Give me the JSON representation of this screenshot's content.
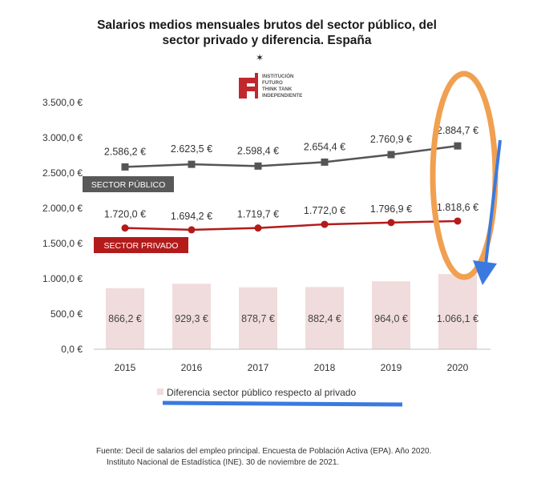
{
  "chart_data": {
    "type": "bar",
    "title_lines": [
      "Salarios medios mensuales brutos del sector público, del",
      "sector privado y diferencia. España"
    ],
    "categories": [
      "2015",
      "2016",
      "2017",
      "2018",
      "2019",
      "2020"
    ],
    "ylim": [
      0,
      3500
    ],
    "yticks": [
      "3.500,0 €",
      "3.000,0 €",
      "2.500,0 €",
      "2.000,0 €",
      "1.500,0 €",
      "1.000,0 €",
      "500,0 €",
      "0,0 €"
    ],
    "ytick_values": [
      3500,
      3000,
      2500,
      2000,
      1500,
      1000,
      500,
      0
    ],
    "series": [
      {
        "name": "SECTOR PÚBLICO",
        "type": "line",
        "values": [
          2586.2,
          2623.5,
          2598.4,
          2654.4,
          2760.9,
          2884.7
        ],
        "labels": [
          "2.586,2 €",
          "2.623,5 €",
          "2.598,4 €",
          "2.654,4 €",
          "2.760,9 €",
          "2.884,7 €"
        ],
        "color": "#555555"
      },
      {
        "name": "SECTOR PRIVADO",
        "type": "line",
        "values": [
          1720.0,
          1694.2,
          1719.7,
          1772.0,
          1796.9,
          1818.6
        ],
        "labels": [
          "1.720,0 €",
          "1.694,2 €",
          "1.719,7 €",
          "1.772,0 €",
          "1.796,9 €",
          "1.818,6 €"
        ],
        "color": "#b31b1b"
      },
      {
        "name": "Diferencia sector público respecto al privado",
        "type": "bar",
        "values": [
          866.2,
          929.3,
          878.7,
          882.4,
          964.0,
          1066.1
        ],
        "labels": [
          "866,2 €",
          "929,3 €",
          "878,7 €",
          "882,4 €",
          "964,0 €",
          "1.066,1 €"
        ],
        "color": "#f0dcdc"
      }
    ],
    "legend": "Diferencia sector público respecto al privado",
    "source_lines": [
      "Fuente: Decil de salarios del empleo principal. Encuesta de Población Activa (EPA). Año 2020.",
      "Instituto Nacional de Estadística (INE). 30 de noviembre de 2021."
    ]
  },
  "logo": {
    "lines": [
      "INSTITUCIÓN",
      "FUTURO",
      "THINK TANK",
      "INDEPENDIENTE"
    ],
    "color": "#c0282d"
  },
  "annotation_colors": {
    "ellipse": "#f0a050",
    "arrow": "#3a7ae0"
  }
}
